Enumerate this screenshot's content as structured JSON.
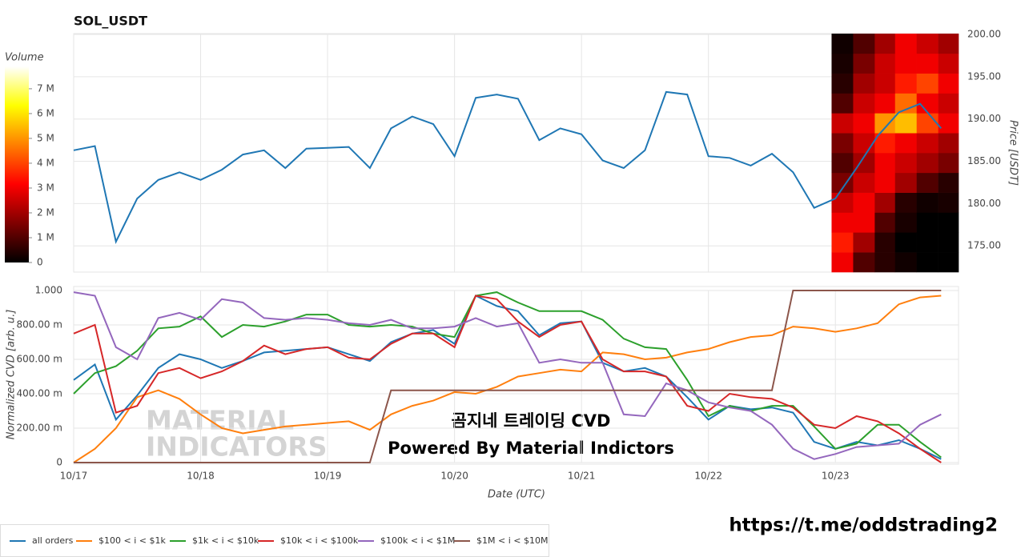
{
  "page": {
    "watermark": [
      "MATERIAL",
      "INDICATORS"
    ],
    "link": "https://t.me/oddstrading2"
  },
  "chart_data": [
    {
      "type": "line",
      "title": "SOL_USDT",
      "y_label": "Price [USDT]",
      "color": "#1f77b4",
      "x": [
        0,
        0.167,
        0.333,
        0.5,
        0.667,
        0.833,
        1,
        1.167,
        1.333,
        1.5,
        1.667,
        1.833,
        2,
        2.167,
        2.333,
        2.5,
        2.667,
        2.833,
        3,
        3.167,
        3.333,
        3.5,
        3.667,
        3.833,
        4,
        4.167,
        4.333,
        4.5,
        4.667,
        4.833,
        5,
        5.167,
        5.333,
        5.5,
        5.667,
        5.833,
        6,
        6.167,
        6.333,
        6.5,
        6.667,
        6.833
      ],
      "values": [
        186.3,
        186.8,
        175.5,
        180.6,
        182.8,
        183.7,
        182.8,
        184.0,
        185.8,
        186.3,
        184.2,
        186.5,
        186.6,
        186.7,
        184.2,
        188.9,
        190.3,
        189.4,
        185.6,
        192.5,
        192.9,
        192.4,
        187.5,
        188.9,
        188.2,
        185.1,
        184.2,
        186.3,
        193.2,
        192.9,
        185.6,
        185.4,
        184.5,
        185.9,
        183.7,
        179.5,
        180.6,
        184.2,
        188.0,
        190.8,
        191.8,
        188.9
      ],
      "xlim": [
        0,
        6.97
      ],
      "xticks": [
        0,
        1,
        2,
        3,
        4,
        5,
        6
      ],
      "ylim": [
        171.9,
        200.1
      ],
      "yticks": [
        {
          "value": 175,
          "label": "175.00"
        },
        {
          "value": 180,
          "label": "180.00"
        },
        {
          "value": 185,
          "label": "185.00"
        },
        {
          "value": 190,
          "label": "190.00"
        },
        {
          "value": 195,
          "label": "195.00"
        },
        {
          "value": 200,
          "label": "200.00"
        }
      ],
      "grid": true,
      "heatmap": {
        "x_edges": [
          5.97,
          6.14,
          6.31,
          6.47,
          6.64,
          6.81,
          6.97
        ],
        "y_edges": [
          171.9,
          174.25,
          176.6,
          178.95,
          181.3,
          183.65,
          186,
          188.35,
          190.7,
          193.05,
          195.4,
          197.75,
          200.1
        ],
        "values": [
          [
            3,
            1,
            0.5,
            0.2,
            0,
            0
          ],
          [
            3.5,
            2,
            0.5,
            0,
            0,
            0
          ],
          [
            3,
            3,
            1,
            0.3,
            0,
            0
          ],
          [
            2.5,
            3,
            2,
            0.5,
            0.2,
            0.3
          ],
          [
            1.5,
            2.5,
            3,
            2,
            1,
            0.5
          ],
          [
            1,
            2,
            3,
            2.5,
            2,
            1.5
          ],
          [
            1.5,
            2.5,
            3.5,
            3,
            2.5,
            2
          ],
          [
            2.5,
            3,
            5,
            5.5,
            4,
            3
          ],
          [
            1,
            2.5,
            3,
            4.5,
            3,
            2.5
          ],
          [
            0.5,
            2,
            2.5,
            3.5,
            4,
            3
          ],
          [
            0.3,
            1.5,
            2.5,
            3,
            3,
            2.5
          ],
          [
            0.2,
            1,
            2,
            3,
            2.5,
            2
          ]
        ]
      },
      "colorbar": {
        "title": "Volume",
        "lim": [
          0,
          7.9
        ],
        "ticks": [
          0,
          {
            "value": 1,
            "label": "1 M"
          },
          {
            "value": 2,
            "label": "2 M"
          },
          {
            "value": 3,
            "label": "3 M"
          },
          {
            "value": 4,
            "label": "4 M"
          },
          {
            "value": 5,
            "label": "5 M"
          },
          {
            "value": 6,
            "label": "6 M"
          },
          {
            "value": 7,
            "label": "7 M"
          }
        ]
      }
    },
    {
      "type": "line",
      "x_label": "Date (UTC)",
      "y_label": "Normalized CVD [arb. u.]",
      "x": [
        0,
        0.167,
        0.333,
        0.5,
        0.667,
        0.833,
        1,
        1.167,
        1.333,
        1.5,
        1.667,
        1.833,
        2,
        2.167,
        2.333,
        2.5,
        2.667,
        2.833,
        3,
        3.167,
        3.333,
        3.5,
        3.667,
        3.833,
        4,
        4.167,
        4.333,
        4.5,
        4.667,
        4.833,
        5,
        5.167,
        5.333,
        5.5,
        5.667,
        5.833,
        6,
        6.167,
        6.333,
        6.5,
        6.667,
        6.833
      ],
      "series": [
        {
          "name": "all orders",
          "color": "#1f77b4",
          "values": [
            0.48,
            0.57,
            0.25,
            0.39,
            0.55,
            0.63,
            0.6,
            0.55,
            0.59,
            0.64,
            0.65,
            0.66,
            0.67,
            0.63,
            0.59,
            0.7,
            0.75,
            0.77,
            0.69,
            0.97,
            0.91,
            0.88,
            0.74,
            0.81,
            0.82,
            0.58,
            0.53,
            0.55,
            0.5,
            0.38,
            0.25,
            0.33,
            0.31,
            0.32,
            0.29,
            0.12,
            0.08,
            0.12,
            0.1,
            0.13,
            0.08,
            0.02
          ]
        },
        {
          "name": "$100 < i < $1k",
          "color": "#ff7f0e",
          "values": [
            0,
            0.08,
            0.2,
            0.38,
            0.42,
            0.37,
            0.28,
            0.2,
            0.17,
            0.19,
            0.21,
            0.22,
            0.23,
            0.24,
            0.19,
            0.28,
            0.33,
            0.36,
            0.41,
            0.4,
            0.44,
            0.5,
            0.52,
            0.54,
            0.53,
            0.64,
            0.63,
            0.6,
            0.61,
            0.64,
            0.66,
            0.7,
            0.73,
            0.74,
            0.79,
            0.78,
            0.76,
            0.78,
            0.81,
            0.92,
            0.96,
            0.97
          ]
        },
        {
          "name": "$1k < i < $10k",
          "color": "#2ca02c",
          "values": [
            0.4,
            0.52,
            0.56,
            0.65,
            0.78,
            0.79,
            0.85,
            0.73,
            0.8,
            0.79,
            0.82,
            0.86,
            0.86,
            0.8,
            0.79,
            0.8,
            0.79,
            0.75,
            0.73,
            0.97,
            0.99,
            0.93,
            0.88,
            0.88,
            0.88,
            0.83,
            0.72,
            0.67,
            0.66,
            0.48,
            0.27,
            0.33,
            0.3,
            0.33,
            0.33,
            0.21,
            0.08,
            0.11,
            0.22,
            0.22,
            0.12,
            0.03
          ]
        },
        {
          "name": "$10k < i < $100k",
          "color": "#d62728",
          "values": [
            0.75,
            0.8,
            0.29,
            0.33,
            0.52,
            0.55,
            0.49,
            0.53,
            0.59,
            0.68,
            0.63,
            0.66,
            0.67,
            0.61,
            0.6,
            0.69,
            0.75,
            0.75,
            0.67,
            0.97,
            0.95,
            0.82,
            0.73,
            0.8,
            0.82,
            0.6,
            0.53,
            0.53,
            0.5,
            0.33,
            0.3,
            0.4,
            0.38,
            0.37,
            0.32,
            0.22,
            0.2,
            0.27,
            0.24,
            0.17,
            0.08,
            0
          ]
        },
        {
          "name": "$100k < i < $1M",
          "color": "#9467bd",
          "values": [
            0.99,
            0.97,
            0.67,
            0.6,
            0.84,
            0.87,
            0.83,
            0.95,
            0.93,
            0.84,
            0.83,
            0.84,
            0.83,
            0.81,
            0.8,
            0.83,
            0.78,
            0.78,
            0.79,
            0.84,
            0.79,
            0.81,
            0.58,
            0.6,
            0.58,
            0.58,
            0.28,
            0.27,
            0.46,
            0.42,
            0.35,
            0.32,
            0.3,
            0.22,
            0.08,
            0.02,
            0.05,
            0.09,
            0.1,
            0.11,
            0.22,
            0.28
          ]
        },
        {
          "name": "$1M < i < $10M",
          "color": "#8c564b",
          "values": [
            0,
            0,
            0,
            0,
            0,
            0,
            0,
            0,
            0,
            0,
            0,
            0,
            0,
            0,
            0,
            0.42,
            0.42,
            0.42,
            0.42,
            0.42,
            0.42,
            0.42,
            0.42,
            0.42,
            0.42,
            0.42,
            0.42,
            0.42,
            0.42,
            0.42,
            0.42,
            0.42,
            0.42,
            0.42,
            1,
            1,
            1,
            1,
            1,
            1,
            1,
            1
          ]
        }
      ],
      "xlim": [
        0,
        6.97
      ],
      "xticks": [
        {
          "value": 0,
          "label": "10/17"
        },
        {
          "value": 1,
          "label": "10/18"
        },
        {
          "value": 2,
          "label": "10/19"
        },
        {
          "value": 3,
          "label": "10/20"
        },
        {
          "value": 4,
          "label": "10/21"
        },
        {
          "value": 5,
          "label": "10/22"
        },
        {
          "value": 6,
          "label": "10/23"
        }
      ],
      "ylim": [
        0,
        1
      ],
      "yticks": [
        0,
        {
          "value": 0.2,
          "label": "200.00 m"
        },
        {
          "value": 0.4,
          "label": "400.00 m"
        },
        {
          "value": 0.6,
          "label": "600.00 m"
        },
        {
          "value": 0.8,
          "label": "800.00 m"
        },
        {
          "value": 1,
          "label": "1.000"
        }
      ],
      "grid": true,
      "legend": "bottom-left",
      "annotations": [
        "곰지네 트레이딩 CVD",
        "Powered By Material Indictors"
      ]
    }
  ]
}
